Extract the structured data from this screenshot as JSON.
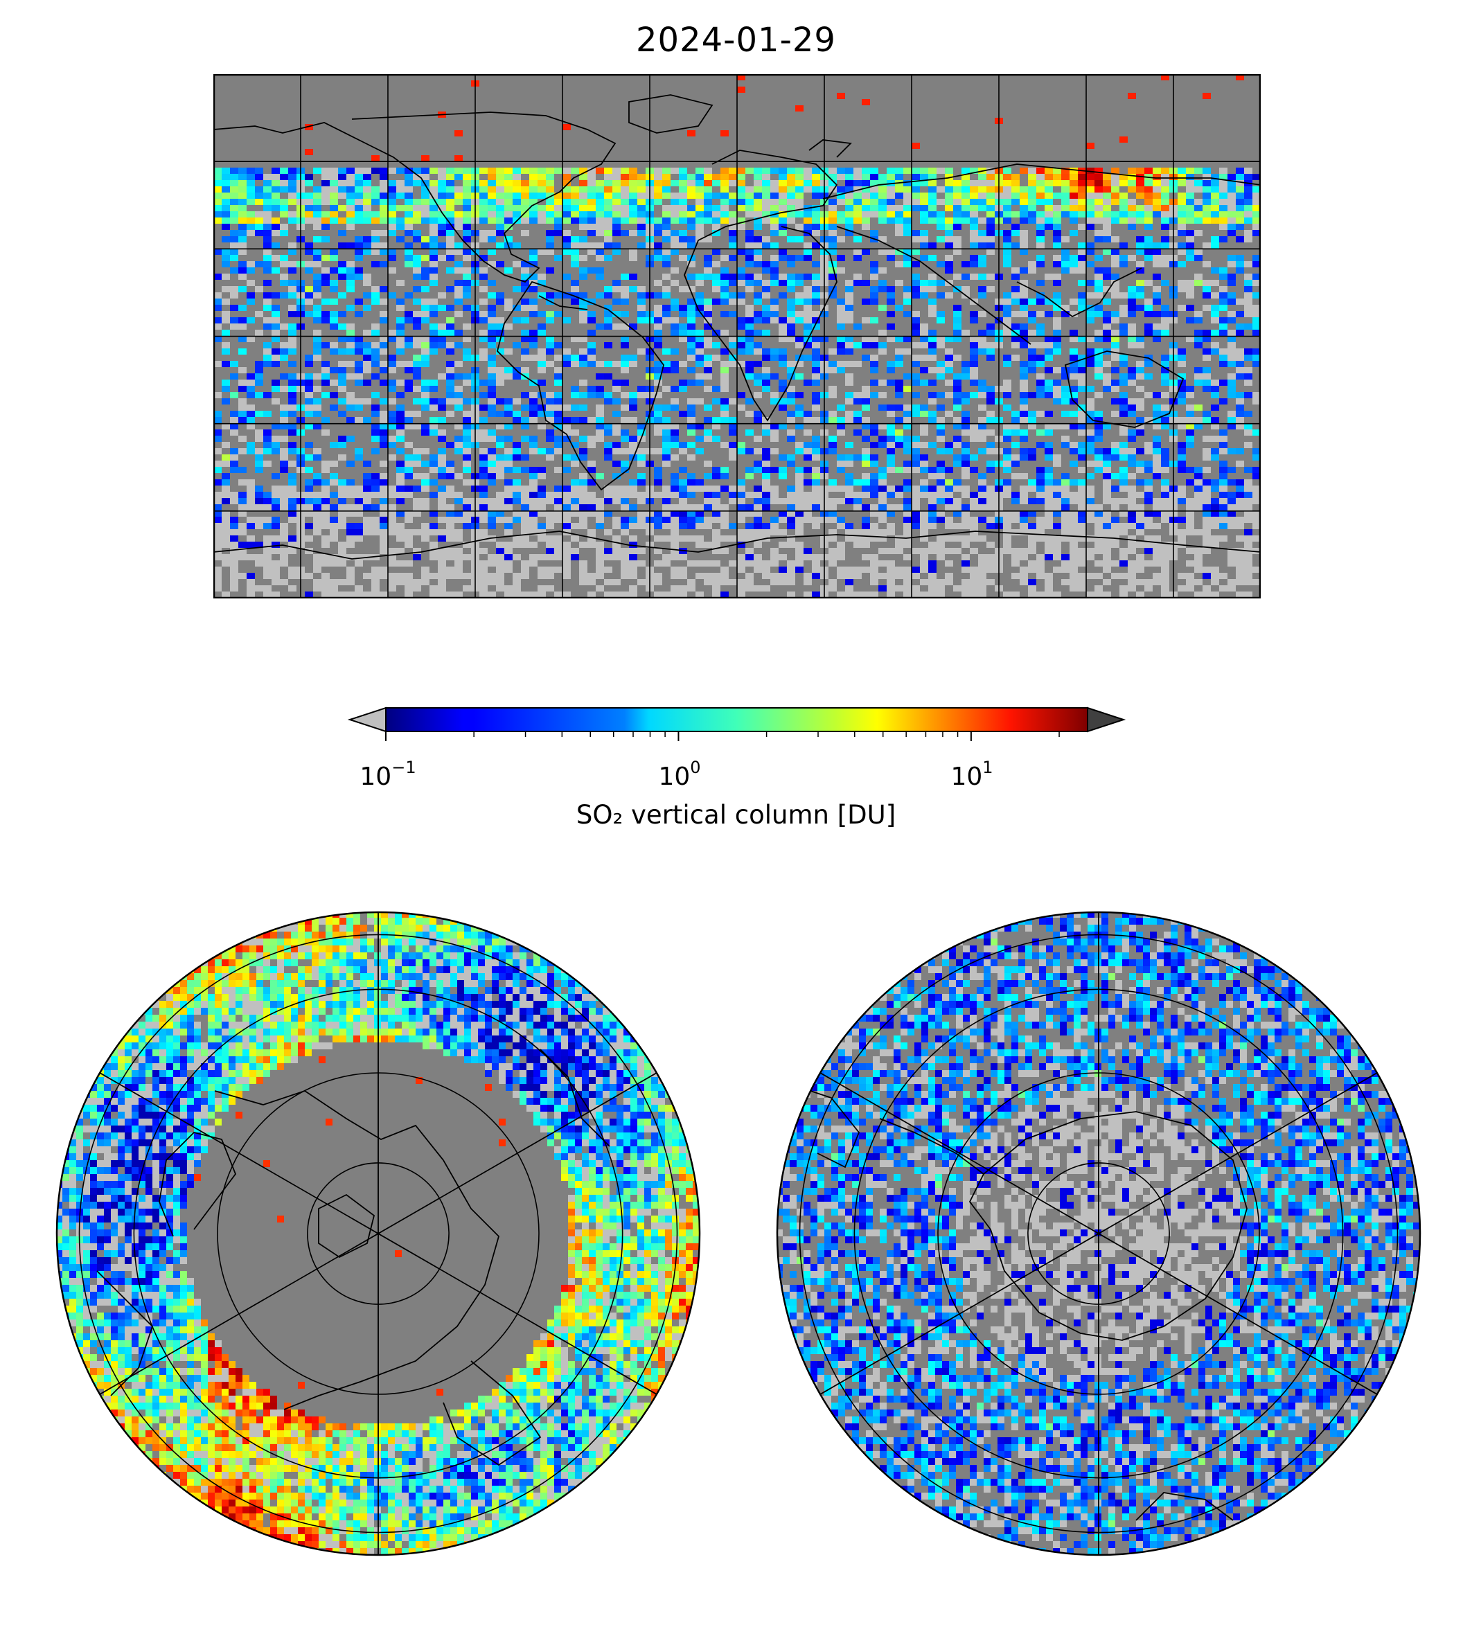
{
  "title": "2024-01-29",
  "colorbar": {
    "label": "SO₂ vertical column [DU]",
    "scale": "log",
    "range": [
      0.1,
      25
    ],
    "ticks": [
      {
        "base": "10",
        "exp": "−1",
        "value": 0.1
      },
      {
        "base": "10",
        "exp": "0",
        "value": 1
      },
      {
        "base": "10",
        "exp": "1",
        "value": 10
      }
    ],
    "colormap": "jet",
    "under_color": "#c0c0c0",
    "over_color": "#404040"
  },
  "maps": [
    {
      "name": "global",
      "projection": "equirectangular"
    },
    {
      "name": "north-polar",
      "projection": "north polar stereographic"
    },
    {
      "name": "south-polar",
      "projection": "south polar stereographic"
    }
  ],
  "colors": {
    "no_data": "#808080",
    "below_range": "#c0c0c0",
    "frame": "#000000"
  }
}
